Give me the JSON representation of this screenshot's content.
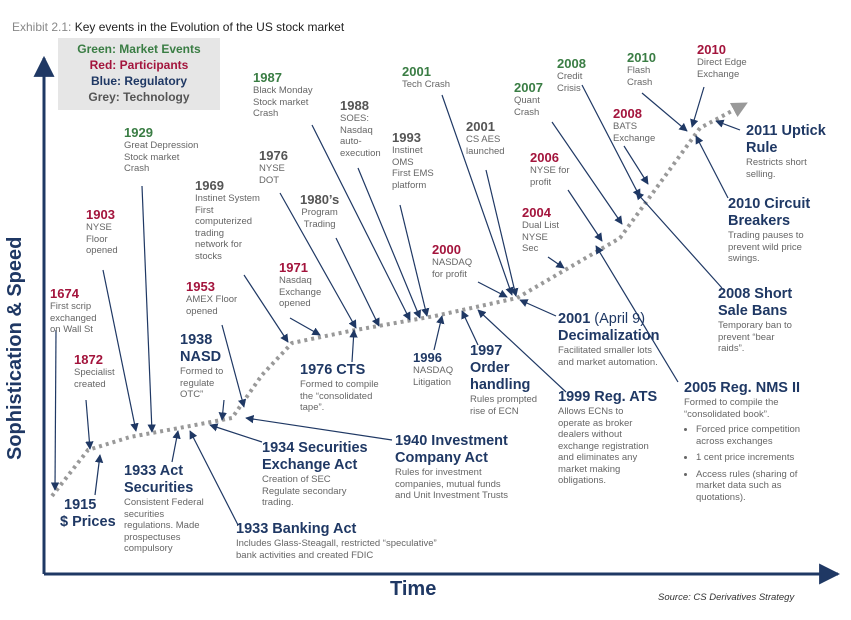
{
  "header": {
    "exhibit_label": "Exhibit 2.1:",
    "title": "Key events in the Evolution of the US stock market"
  },
  "legend": {
    "market": "Green: Market Events",
    "participants": "Red: Participants",
    "regulatory": "Blue: Regulatory",
    "technology": "Grey: Technology"
  },
  "axes": {
    "y_label": "Sophistication & Speed",
    "x_label": "Time"
  },
  "source": "Source: CS Derivatives Strategy",
  "colors": {
    "green": "#3a7d44",
    "red": "#a3143c",
    "blue": "#1f3864",
    "grey": "#555555",
    "curve": "#999999"
  },
  "events": {
    "e1674": {
      "year": "1674",
      "desc": [
        "First scrip",
        "exchanged",
        "on Wall St"
      ]
    },
    "e1872": {
      "year": "1872",
      "desc": [
        "Specialist",
        "created"
      ]
    },
    "e1903": {
      "year": "1903",
      "desc": [
        "NYSE",
        "Floor",
        "opened"
      ]
    },
    "e1915": {
      "year": "1915",
      "title": "$ Prices"
    },
    "e1929": {
      "year": "1929",
      "desc": [
        "Great Depression",
        "Stock market",
        "Crash"
      ]
    },
    "e1933a": {
      "year": "1933 Act",
      "title": "Securities",
      "desc": [
        "Consistent Federal",
        "securities",
        "regulations.  Made",
        "prospectuses",
        "compulsory"
      ]
    },
    "e1933b": {
      "title": "1933 Banking Act",
      "desc": [
        "Includes Glass-Steagall, restricted “speculative”",
        "bank activities and created FDIC"
      ]
    },
    "e1934": {
      "title": [
        "1934 Securities",
        "Exchange Act"
      ],
      "desc": [
        "Creation of SEC",
        "Regulate secondary",
        "trading."
      ]
    },
    "e1938": {
      "year": "1938",
      "title": "NASD",
      "desc": [
        "Formed to",
        "regulate",
        "OTC”"
      ]
    },
    "e1940": {
      "title": [
        "1940 Investment",
        "Company Act"
      ],
      "desc": [
        "Rules for investment",
        "companies, mutual funds",
        "and Unit Investment Trusts"
      ]
    },
    "e1953": {
      "year": "1953",
      "desc": [
        "AMEX Floor",
        "opened"
      ]
    },
    "e1969": {
      "year": "1969",
      "desc": [
        "Instinet System",
        "First",
        "computerized",
        "trading",
        "network for",
        "stocks"
      ]
    },
    "e1971": {
      "year": "1971",
      "desc": [
        "Nasdaq",
        "Exchange",
        "opened"
      ]
    },
    "e1976a": {
      "year": "1976",
      "desc": [
        "NYSE",
        "DOT"
      ]
    },
    "e1976b": {
      "title": "1976 CTS",
      "desc": [
        "Formed to compile",
        "the “consolidated",
        "tape”."
      ]
    },
    "e1980": {
      "year": "1980’s",
      "desc": [
        "Program",
        "Trading"
      ]
    },
    "e1987": {
      "year": "1987",
      "desc": [
        "Black Monday",
        "Stock market",
        "Crash"
      ]
    },
    "e1988": {
      "year": "1988",
      "desc": [
        "SOES:",
        "Nasdaq",
        "auto-",
        "execution"
      ]
    },
    "e1993": {
      "year": "1993",
      "desc": [
        "Instinet",
        "OMS",
        "First EMS",
        "platform"
      ]
    },
    "e1996": {
      "year": "1996",
      "desc": [
        "NASDAQ",
        "Litigation"
      ]
    },
    "e1997": {
      "title": [
        "1997",
        "Order",
        "handling"
      ],
      "desc": [
        "Rules prompted",
        "rise of ECN"
      ]
    },
    "e1999": {
      "title": "1999 Reg. ATS",
      "desc": [
        "Allows ECNs to",
        "operate as broker",
        "dealers without",
        "exchange registration",
        "and eliminates any",
        "market making",
        "obligations."
      ]
    },
    "e2000": {
      "year": "2000",
      "desc": [
        "NASDAQ",
        "for profit"
      ]
    },
    "e2001a": {
      "year": "2001",
      "desc": [
        "Tech Crash"
      ]
    },
    "e2001b": {
      "year": "2001",
      "desc": [
        "CS AES",
        "launched"
      ]
    },
    "e2001c": {
      "title": "2001",
      "title_extra": "(April 9)",
      "title2": "Decimalization",
      "desc": [
        "Facilitated smaller lots",
        "and market automation."
      ]
    },
    "e2004": {
      "year": "2004",
      "desc": [
        "Dual List",
        "NYSE",
        "Sec"
      ]
    },
    "e2005": {
      "title": "2005 Reg. NMS II",
      "desc": [
        "Formed to compile the",
        "“consolidated book”."
      ],
      "bullets": [
        [
          "Forced price competition",
          "across exchanges"
        ],
        [
          "1 cent price increments"
        ],
        [
          "Access rules (sharing of",
          "market data such as",
          "quotations)."
        ]
      ]
    },
    "e2006": {
      "year": "2006",
      "desc": [
        "NYSE for",
        "profit"
      ]
    },
    "e2007": {
      "year": "2007",
      "desc": [
        "Quant",
        "Crash"
      ]
    },
    "e2008a": {
      "year": "2008",
      "desc": [
        "Credit",
        "Crisis"
      ]
    },
    "e2008b": {
      "year": "2008",
      "desc": [
        "BATS",
        "Exchange"
      ]
    },
    "e2008c": {
      "title": [
        "2008 Short",
        "Sale Bans"
      ],
      "desc": [
        "Temporary ban to",
        "prevent “bear",
        "raids”."
      ]
    },
    "e2010a": {
      "year": "2010",
      "desc": [
        "Flash",
        "Crash"
      ]
    },
    "e2010b": {
      "year": "2010",
      "desc": [
        "Direct Edge",
        "Exchange"
      ]
    },
    "e2010c": {
      "title": [
        "2010 Circuit",
        "Breakers"
      ],
      "desc": [
        "Trading pauses to",
        "prevent wild price",
        "swings."
      ]
    },
    "e2011": {
      "title": [
        "2011 Uptick",
        "Rule"
      ],
      "desc": [
        "Restricts short",
        "selling."
      ]
    }
  }
}
